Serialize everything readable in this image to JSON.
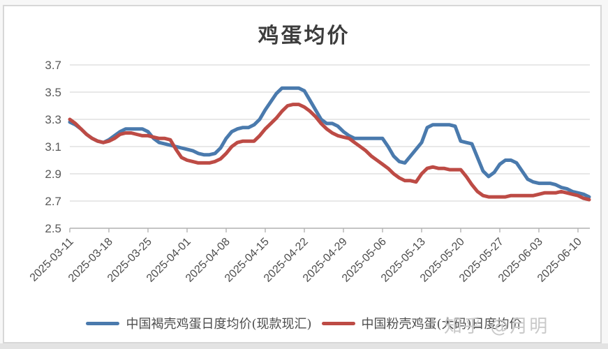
{
  "page": {
    "watermark": "知乎 @月明"
  },
  "chart_data": {
    "type": "line",
    "title": "鸡蛋均价",
    "xlabel": "",
    "ylabel": "",
    "ylim": [
      2.5,
      3.7
    ],
    "y_ticks": [
      3.7,
      3.5,
      3.3,
      3.1,
      2.9,
      2.7,
      2.5
    ],
    "grid": "horizontal",
    "legend_position": "bottom",
    "x_tick_labels": [
      "2025-03-11",
      "2025-03-18",
      "2025-03-25",
      "2025-04-01",
      "2025-04-08",
      "2025-04-15",
      "2025-04-22",
      "2025-04-29",
      "2025-05-06",
      "2025-05-13",
      "2025-05-20",
      "2025-05-27",
      "2025-06-03",
      "2025-06-10"
    ],
    "x_dates": [
      "2025-03-11",
      "2025-03-12",
      "2025-03-13",
      "2025-03-14",
      "2025-03-15",
      "2025-03-16",
      "2025-03-17",
      "2025-03-18",
      "2025-03-19",
      "2025-03-20",
      "2025-03-21",
      "2025-03-22",
      "2025-03-23",
      "2025-03-24",
      "2025-03-25",
      "2025-03-26",
      "2025-03-27",
      "2025-03-28",
      "2025-03-29",
      "2025-03-30",
      "2025-03-31",
      "2025-04-01",
      "2025-04-02",
      "2025-04-03",
      "2025-04-04",
      "2025-04-05",
      "2025-04-06",
      "2025-04-07",
      "2025-04-08",
      "2025-04-09",
      "2025-04-10",
      "2025-04-11",
      "2025-04-12",
      "2025-04-13",
      "2025-04-14",
      "2025-04-15",
      "2025-04-16",
      "2025-04-17",
      "2025-04-18",
      "2025-04-19",
      "2025-04-20",
      "2025-04-21",
      "2025-04-22",
      "2025-04-23",
      "2025-04-24",
      "2025-04-25",
      "2025-04-26",
      "2025-04-27",
      "2025-04-28",
      "2025-04-29",
      "2025-04-30",
      "2025-05-01",
      "2025-05-02",
      "2025-05-03",
      "2025-05-04",
      "2025-05-05",
      "2025-05-06",
      "2025-05-07",
      "2025-05-08",
      "2025-05-09",
      "2025-05-10",
      "2025-05-11",
      "2025-05-12",
      "2025-05-13",
      "2025-05-14",
      "2025-05-15",
      "2025-05-16",
      "2025-05-17",
      "2025-05-18",
      "2025-05-19",
      "2025-05-20",
      "2025-05-21",
      "2025-05-22",
      "2025-05-23",
      "2025-05-24",
      "2025-05-25",
      "2025-05-26",
      "2025-05-27",
      "2025-05-28",
      "2025-05-29",
      "2025-05-30",
      "2025-05-31",
      "2025-06-01",
      "2025-06-02",
      "2025-06-03",
      "2025-06-04",
      "2025-06-05",
      "2025-06-06",
      "2025-06-07",
      "2025-06-08",
      "2025-06-09",
      "2025-06-10",
      "2025-06-11",
      "2025-06-12"
    ],
    "series": [
      {
        "name": "中国褐壳鸡蛋日度均价(现款现汇)",
        "color": "#4a7aad",
        "values": [
          3.28,
          3.26,
          3.23,
          3.19,
          3.16,
          3.14,
          3.13,
          3.15,
          3.18,
          3.21,
          3.23,
          3.23,
          3.23,
          3.23,
          3.21,
          3.16,
          3.13,
          3.12,
          3.11,
          3.1,
          3.09,
          3.08,
          3.07,
          3.05,
          3.04,
          3.04,
          3.05,
          3.09,
          3.16,
          3.21,
          3.23,
          3.24,
          3.24,
          3.26,
          3.3,
          3.37,
          3.43,
          3.49,
          3.53,
          3.53,
          3.53,
          3.53,
          3.51,
          3.44,
          3.37,
          3.3,
          3.27,
          3.27,
          3.25,
          3.21,
          3.18,
          3.16,
          3.16,
          3.16,
          3.16,
          3.16,
          3.16,
          3.1,
          3.03,
          2.99,
          2.98,
          3.03,
          3.08,
          3.13,
          3.24,
          3.26,
          3.26,
          3.26,
          3.26,
          3.25,
          3.14,
          3.13,
          3.12,
          3.02,
          2.92,
          2.88,
          2.91,
          2.97,
          3.0,
          3.0,
          2.98,
          2.92,
          2.86,
          2.84,
          2.83,
          2.83,
          2.83,
          2.82,
          2.8,
          2.79,
          2.77,
          2.76,
          2.75,
          2.73
        ]
      },
      {
        "name": "中国粉壳鸡蛋(大码)日度均价",
        "color": "#bd4b45",
        "values": [
          3.3,
          3.27,
          3.23,
          3.19,
          3.16,
          3.14,
          3.13,
          3.14,
          3.16,
          3.19,
          3.2,
          3.2,
          3.19,
          3.18,
          3.18,
          3.17,
          3.16,
          3.16,
          3.15,
          3.08,
          3.02,
          3.0,
          2.99,
          2.98,
          2.98,
          2.98,
          2.99,
          3.01,
          3.05,
          3.1,
          3.13,
          3.14,
          3.14,
          3.14,
          3.18,
          3.23,
          3.27,
          3.31,
          3.36,
          3.4,
          3.41,
          3.41,
          3.39,
          3.36,
          3.32,
          3.27,
          3.23,
          3.2,
          3.18,
          3.17,
          3.16,
          3.13,
          3.1,
          3.07,
          3.03,
          3.0,
          2.97,
          2.94,
          2.9,
          2.87,
          2.85,
          2.85,
          2.84,
          2.9,
          2.94,
          2.95,
          2.94,
          2.94,
          2.93,
          2.93,
          2.93,
          2.88,
          2.82,
          2.77,
          2.74,
          2.73,
          2.73,
          2.73,
          2.73,
          2.74,
          2.74,
          2.74,
          2.74,
          2.74,
          2.75,
          2.76,
          2.76,
          2.76,
          2.77,
          2.76,
          2.75,
          2.74,
          2.72,
          2.71
        ]
      }
    ]
  }
}
